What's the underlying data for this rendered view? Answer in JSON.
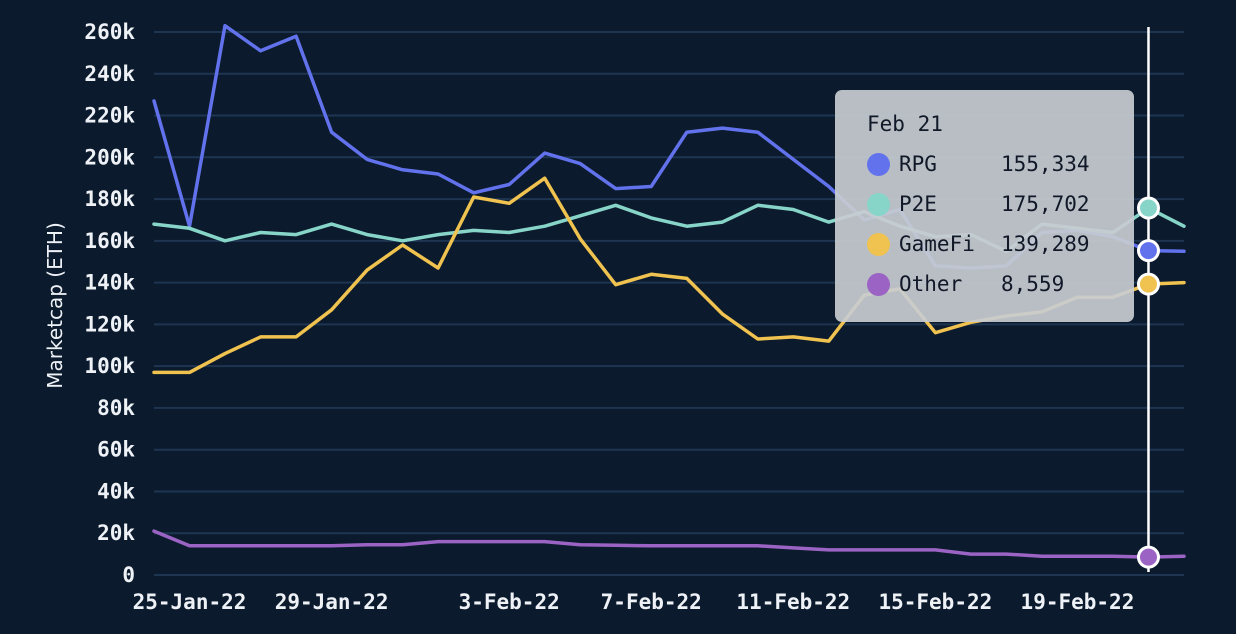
{
  "chart_data": {
    "type": "line",
    "ylabel": "Marketcap (ETH)",
    "xlabel": "",
    "ylim": [
      0,
      270000
    ],
    "y_ticks": [
      0,
      20000,
      40000,
      60000,
      80000,
      100000,
      120000,
      140000,
      160000,
      180000,
      200000,
      220000,
      240000,
      260000
    ],
    "y_tick_labels": [
      "0",
      "20k",
      "40k",
      "60k",
      "80k",
      "100k",
      "120k",
      "140k",
      "160k",
      "180k",
      "200k",
      "220k",
      "240k",
      "260k"
    ],
    "x_tick_labels": [
      "25-Jan-22",
      "29-Jan-22",
      "3-Feb-22",
      "7-Feb-22",
      "11-Feb-22",
      "15-Feb-22",
      "19-Feb-22"
    ],
    "x": [
      "24-Jan-22",
      "25-Jan-22",
      "26-Jan-22",
      "27-Jan-22",
      "28-Jan-22",
      "29-Jan-22",
      "30-Jan-22",
      "31-Jan-22",
      "1-Feb-22",
      "2-Feb-22",
      "3-Feb-22",
      "4-Feb-22",
      "5-Feb-22",
      "6-Feb-22",
      "7-Feb-22",
      "8-Feb-22",
      "9-Feb-22",
      "10-Feb-22",
      "11-Feb-22",
      "12-Feb-22",
      "13-Feb-22",
      "14-Feb-22",
      "15-Feb-22",
      "16-Feb-22",
      "17-Feb-22",
      "18-Feb-22",
      "19-Feb-22",
      "20-Feb-22",
      "21-Feb-22",
      "22-Feb-22"
    ],
    "grid": true,
    "series": [
      {
        "name": "RPG",
        "color": "#6272ec",
        "values": [
          227000,
          167000,
          263000,
          251000,
          258000,
          212000,
          199000,
          194000,
          192000,
          183000,
          187000,
          202000,
          197000,
          185000,
          186000,
          212000,
          214000,
          212000,
          199000,
          186000,
          170000,
          175000,
          148000,
          147000,
          148000,
          164000,
          165000,
          162000,
          155334,
          155000
        ]
      },
      {
        "name": "P2E",
        "color": "#87d4c9",
        "values": [
          168000,
          166000,
          160000,
          164000,
          163000,
          168000,
          163000,
          160000,
          163000,
          165000,
          164000,
          167000,
          172000,
          177000,
          171000,
          167000,
          169000,
          177000,
          175000,
          169000,
          174000,
          167000,
          162000,
          163000,
          155000,
          168000,
          166000,
          164000,
          175702,
          167000
        ]
      },
      {
        "name": "GameFi",
        "color": "#f0c24f",
        "values": [
          97000,
          97000,
          106000,
          114000,
          114000,
          127000,
          146000,
          158000,
          147000,
          181000,
          178000,
          190000,
          161000,
          139000,
          144000,
          142000,
          125000,
          113000,
          114000,
          112000,
          134000,
          137000,
          116000,
          121000,
          124000,
          126000,
          133000,
          133000,
          139289,
          140000
        ]
      },
      {
        "name": "Other",
        "color": "#9b64c4",
        "values": [
          21000,
          14000,
          14000,
          14000,
          14000,
          14000,
          14500,
          14500,
          16000,
          16000,
          16000,
          16000,
          14500,
          14200,
          14000,
          14000,
          14000,
          14000,
          13000,
          12000,
          12000,
          12000,
          12000,
          10000,
          10000,
          9000,
          9000,
          9000,
          8559,
          9000
        ]
      }
    ],
    "tooltip": {
      "date": "Feb 21",
      "rows": [
        {
          "name": "RPG",
          "value": "155,334",
          "color": "#6272ec"
        },
        {
          "name": "P2E",
          "value": "175,702",
          "color": "#87d4c9"
        },
        {
          "name": "GameFi",
          "value": "139,289",
          "color": "#f0c24f"
        },
        {
          "name": "Other",
          "value": "8,559",
          "color": "#9b64c4"
        }
      ]
    },
    "hover_index": 28
  }
}
